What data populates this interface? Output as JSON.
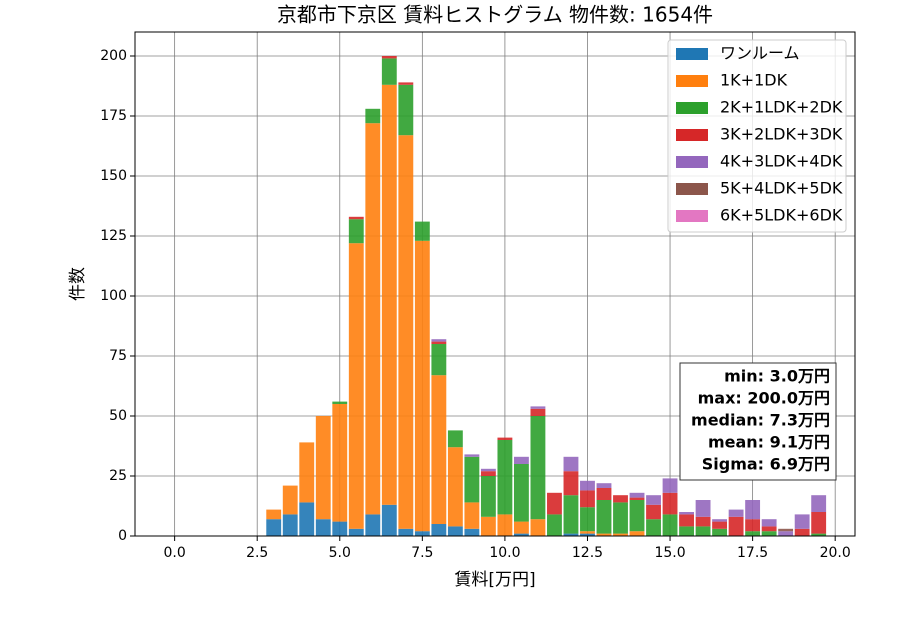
{
  "chart_data": {
    "type": "histogram",
    "title": "京都市下京区 賃料ヒストグラム  物件数: 1654件",
    "x_label": "賃料[万円]",
    "y_label": "件数",
    "bins": [
      2.75,
      3.25,
      3.75,
      4.25,
      4.75,
      5.25,
      5.75,
      6.25,
      6.75,
      7.25,
      7.75,
      8.25,
      8.75,
      9.25,
      9.75,
      10.25,
      10.75,
      11.25,
      11.75,
      12.25,
      12.75,
      13.25,
      13.75,
      14.25,
      14.75,
      15.25,
      15.75,
      16.25,
      16.75,
      17.25,
      17.75,
      18.25,
      18.75,
      19.25,
      19.75
    ],
    "series": [
      {
        "name": "ワンルーム",
        "color": "#1f77b4",
        "values": [
          7,
          9,
          14,
          7,
          6,
          3,
          9,
          13,
          3,
          2,
          5,
          4,
          3,
          0,
          0,
          1,
          0,
          0,
          1,
          1,
          0,
          0,
          0,
          0,
          0,
          0,
          0,
          0,
          0,
          0,
          0,
          0,
          0,
          0
        ]
      },
      {
        "name": "1K+1DK",
        "color": "#ff7f0e",
        "values": [
          4,
          12,
          25,
          43,
          49,
          119,
          163,
          175,
          164,
          121,
          62,
          33,
          11,
          8,
          9,
          5,
          7,
          0,
          0,
          1,
          1,
          1,
          2,
          0,
          0,
          0,
          0,
          0,
          0,
          0,
          0,
          0,
          0,
          0
        ]
      },
      {
        "name": "2K+1LDK+2DK",
        "color": "#2ca02c",
        "values": [
          0,
          0,
          0,
          0,
          1,
          10,
          6,
          11,
          21,
          8,
          13,
          7,
          19,
          17,
          31,
          24,
          43,
          9,
          16,
          10,
          14,
          13,
          13,
          7,
          9,
          4,
          4,
          3,
          0,
          2,
          2,
          0,
          0,
          1
        ]
      },
      {
        "name": "3K+2LDK+3DK",
        "color": "#d62728",
        "values": [
          0,
          0,
          0,
          0,
          0,
          1,
          0,
          1,
          1,
          0,
          1,
          0,
          0,
          2,
          1,
          0,
          3,
          9,
          10,
          7,
          5,
          3,
          1,
          6,
          9,
          5,
          4,
          3,
          8,
          5,
          2,
          0,
          3,
          9
        ]
      },
      {
        "name": "4K+3LDK+4DK",
        "color": "#9467bd",
        "values": [
          0,
          0,
          0,
          0,
          0,
          0,
          0,
          0,
          0,
          0,
          1,
          0,
          1,
          1,
          0,
          3,
          1,
          0,
          6,
          4,
          2,
          0,
          2,
          4,
          6,
          1,
          7,
          1,
          3,
          8,
          3,
          2,
          6,
          7
        ]
      },
      {
        "name": "5K+4LDK+5DK",
        "color": "#8c564b",
        "values": [
          0,
          0,
          0,
          0,
          0,
          0,
          0,
          0,
          0,
          0,
          0,
          0,
          0,
          0,
          0,
          0,
          0,
          0,
          0,
          0,
          0,
          0,
          0,
          0,
          0,
          0,
          0,
          0,
          0,
          0,
          0,
          1,
          0,
          0
        ]
      },
      {
        "name": "6K+5LDK+6DK",
        "color": "#e377c2",
        "values": [
          0,
          0,
          0,
          0,
          0,
          0,
          0,
          0,
          0,
          0,
          0,
          0,
          0,
          0,
          0,
          0,
          0,
          0,
          0,
          0,
          0,
          0,
          0,
          0,
          0,
          0,
          0,
          0,
          0,
          0,
          0,
          0,
          0,
          0
        ]
      }
    ],
    "xlim": [
      -1.2,
      20.6
    ],
    "ylim": [
      0,
      210
    ],
    "xticks": [
      {
        "value": 0,
        "label": "0.0"
      },
      {
        "value": 2.5,
        "label": "2.5"
      },
      {
        "value": 5,
        "label": "5.0"
      },
      {
        "value": 7.5,
        "label": "7.5"
      },
      {
        "value": 10,
        "label": "10.0"
      },
      {
        "value": 12.5,
        "label": "12.5"
      },
      {
        "value": 15,
        "label": "15.0"
      },
      {
        "value": 17.5,
        "label": "17.5"
      },
      {
        "value": 20,
        "label": "20.0"
      }
    ],
    "yticks": [
      0,
      25,
      50,
      75,
      100,
      125,
      150,
      175,
      200
    ],
    "grid": true,
    "legend": "upper right",
    "annotations": [
      "min: 3.0万円",
      "max: 200.0万円",
      "median: 7.3万円",
      "mean: 9.1万円",
      "Sigma: 6.9万円"
    ]
  }
}
